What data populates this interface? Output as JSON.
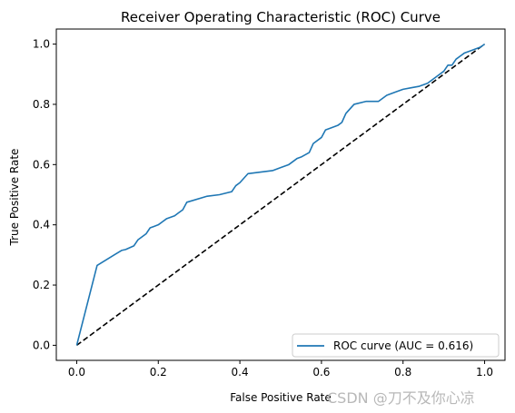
{
  "chart_data": {
    "type": "line",
    "title": "Receiver Operating Characteristic (ROC) Curve",
    "xlabel": "False Positive Rate",
    "ylabel": "True Positive Rate",
    "xlim": [
      -0.05,
      1.05
    ],
    "ylim": [
      -0.05,
      1.05
    ],
    "xticks": [
      "0.0",
      "0.2",
      "0.4",
      "0.6",
      "0.8",
      "1.0"
    ],
    "yticks": [
      "0.0",
      "0.2",
      "0.4",
      "0.6",
      "0.8",
      "1.0"
    ],
    "grid": false,
    "legend_position": "bottom-right",
    "series": [
      {
        "name": "ROC curve (AUC = 0.616)",
        "color": "#1f77b4",
        "style": "solid",
        "x": [
          0.0,
          0.05,
          0.11,
          0.12,
          0.14,
          0.15,
          0.17,
          0.18,
          0.19,
          0.2,
          0.21,
          0.22,
          0.24,
          0.25,
          0.26,
          0.27,
          0.32,
          0.35,
          0.38,
          0.39,
          0.4,
          0.41,
          0.42,
          0.48,
          0.5,
          0.52,
          0.54,
          0.55,
          0.57,
          0.58,
          0.6,
          0.61,
          0.62,
          0.64,
          0.65,
          0.66,
          0.68,
          0.71,
          0.74,
          0.76,
          0.78,
          0.8,
          0.82,
          0.84,
          0.86,
          0.88,
          0.9,
          0.91,
          0.92,
          0.93,
          0.94,
          0.95,
          0.97,
          0.99,
          1.0
        ],
        "y": [
          0.0,
          0.265,
          0.315,
          0.318,
          0.33,
          0.35,
          0.37,
          0.39,
          0.395,
          0.4,
          0.41,
          0.42,
          0.43,
          0.44,
          0.45,
          0.475,
          0.495,
          0.5,
          0.51,
          0.53,
          0.54,
          0.555,
          0.57,
          0.58,
          0.59,
          0.6,
          0.62,
          0.625,
          0.64,
          0.67,
          0.69,
          0.715,
          0.72,
          0.73,
          0.74,
          0.77,
          0.8,
          0.81,
          0.81,
          0.83,
          0.84,
          0.85,
          0.855,
          0.86,
          0.87,
          0.89,
          0.91,
          0.93,
          0.93,
          0.95,
          0.96,
          0.97,
          0.98,
          0.99,
          1.0
        ]
      },
      {
        "name": "",
        "color": "#000000",
        "style": "dashed",
        "x": [
          0.0,
          1.0
        ],
        "y": [
          0.0,
          1.0
        ]
      }
    ],
    "watermark": "CSDN @刀不及你心凉"
  }
}
